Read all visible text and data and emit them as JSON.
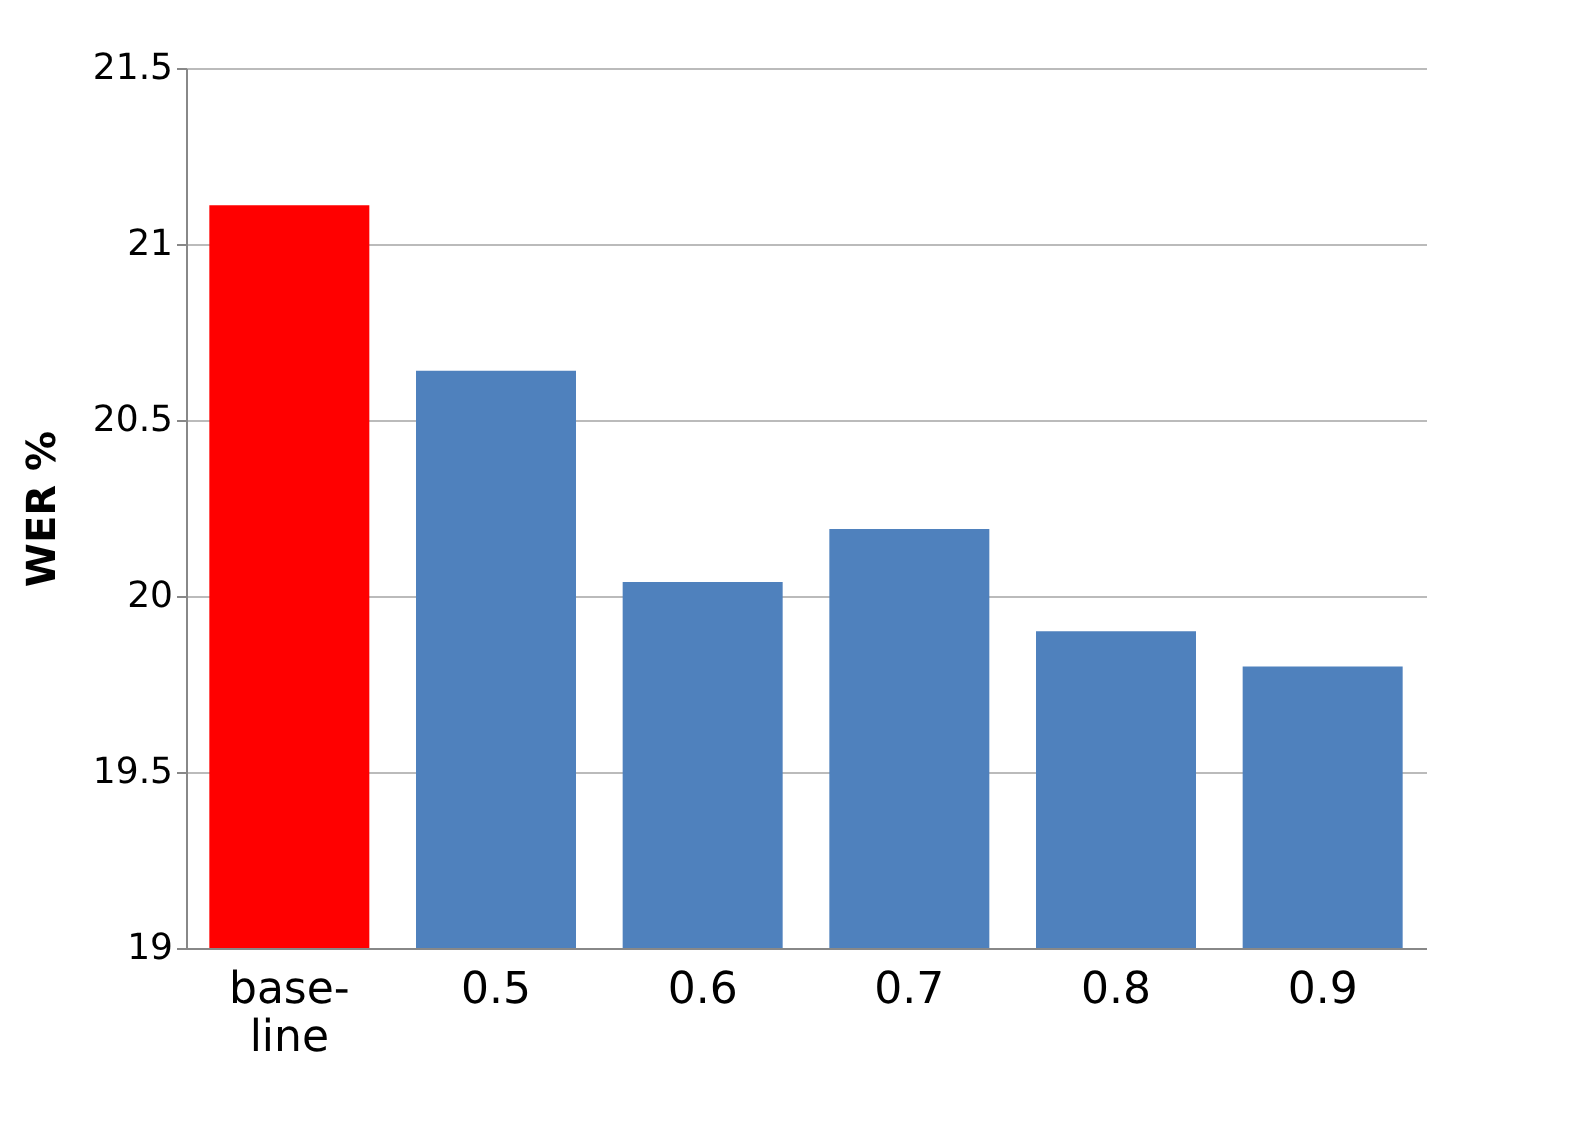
{
  "chart_data": {
    "type": "bar",
    "ylabel": "WER %",
    "categories": [
      "base-line",
      "0.5",
      "0.6",
      "0.7",
      "0.8",
      "0.9"
    ],
    "values": [
      21.11,
      20.64,
      20.04,
      20.19,
      19.9,
      19.8
    ],
    "colors": [
      "#ff0000",
      "#4f81bd",
      "#4f81bd",
      "#4f81bd",
      "#4f81bd",
      "#4f81bd"
    ],
    "ylim": [
      19,
      21.5
    ],
    "yticks": [
      19,
      19.5,
      20,
      20.5,
      21,
      21.5
    ],
    "grid": "y",
    "legend": false
  }
}
